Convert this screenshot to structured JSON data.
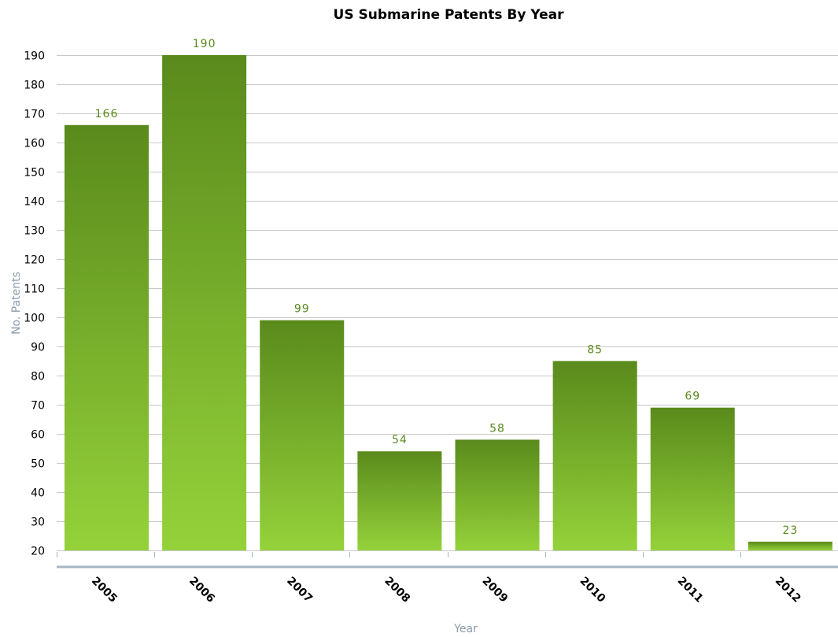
{
  "chart_data": {
    "type": "bar",
    "title": "US Submarine Patents By Year",
    "xlabel": "Year",
    "ylabel": "No. Patents",
    "categories": [
      "2005",
      "2006",
      "2007",
      "2008",
      "2009",
      "2010",
      "2011",
      "2012"
    ],
    "values": [
      166,
      190,
      99,
      54,
      58,
      85,
      69,
      23
    ],
    "ylim": [
      20,
      190
    ],
    "yticks": [
      20,
      30,
      40,
      50,
      60,
      70,
      80,
      90,
      100,
      110,
      120,
      130,
      140,
      150,
      160,
      170,
      180,
      190
    ],
    "grid": true,
    "data_labels": true,
    "colors": {
      "bar_top": "#5a8a1c",
      "bar_bottom": "#94d23a",
      "label": "#5b8a1c",
      "axis_title": "#8a9aa8",
      "gridline": "#c8c8c8",
      "x_axis_line": "#a7b5c2"
    }
  }
}
